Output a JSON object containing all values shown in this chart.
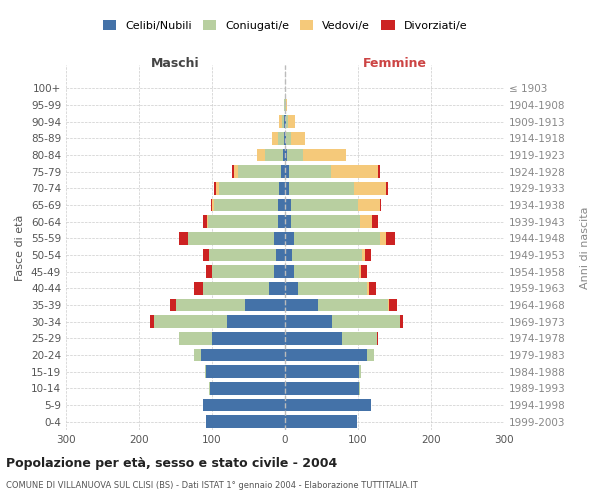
{
  "age_groups": [
    "0-4",
    "5-9",
    "10-14",
    "15-19",
    "20-24",
    "25-29",
    "30-34",
    "35-39",
    "40-44",
    "45-49",
    "50-54",
    "55-59",
    "60-64",
    "65-69",
    "70-74",
    "75-79",
    "80-84",
    "85-89",
    "90-94",
    "95-99",
    "100+"
  ],
  "birth_years": [
    "1999-2003",
    "1994-1998",
    "1989-1993",
    "1984-1988",
    "1979-1983",
    "1974-1978",
    "1969-1973",
    "1964-1968",
    "1959-1963",
    "1954-1958",
    "1949-1953",
    "1944-1948",
    "1939-1943",
    "1934-1938",
    "1929-1933",
    "1924-1928",
    "1919-1923",
    "1914-1918",
    "1909-1913",
    "1904-1908",
    "≤ 1903"
  ],
  "colors": {
    "celibi": "#4472a8",
    "coniugati": "#b8cfa0",
    "vedovi": "#f5c97a",
    "divorziati": "#cc2222"
  },
  "maschi": {
    "celibi": [
      108,
      112,
      103,
      108,
      115,
      100,
      80,
      55,
      22,
      15,
      12,
      15,
      10,
      9,
      8,
      5,
      3,
      2,
      1,
      0,
      0
    ],
    "coniugati": [
      0,
      0,
      1,
      2,
      10,
      45,
      100,
      95,
      90,
      85,
      92,
      118,
      95,
      88,
      82,
      60,
      25,
      8,
      3,
      1,
      0
    ],
    "vedovi": [
      0,
      0,
      0,
      0,
      0,
      0,
      0,
      0,
      0,
      0,
      0,
      0,
      2,
      3,
      5,
      5,
      10,
      8,
      4,
      1,
      0
    ],
    "divorziati": [
      0,
      0,
      0,
      0,
      0,
      0,
      5,
      8,
      12,
      8,
      8,
      12,
      6,
      2,
      2,
      2,
      0,
      0,
      0,
      0,
      0
    ]
  },
  "femmine": {
    "nubili": [
      98,
      118,
      102,
      102,
      112,
      78,
      65,
      45,
      18,
      12,
      10,
      12,
      8,
      8,
      6,
      5,
      3,
      2,
      1,
      0,
      0
    ],
    "coniugate": [
      0,
      0,
      1,
      2,
      10,
      48,
      92,
      96,
      95,
      90,
      95,
      118,
      95,
      92,
      88,
      58,
      22,
      6,
      3,
      1,
      0
    ],
    "vedove": [
      0,
      0,
      0,
      0,
      0,
      0,
      0,
      2,
      2,
      2,
      5,
      8,
      16,
      30,
      45,
      65,
      58,
      20,
      10,
      2,
      0
    ],
    "divorziate": [
      0,
      0,
      0,
      0,
      0,
      2,
      5,
      10,
      10,
      8,
      8,
      12,
      8,
      2,
      2,
      2,
      0,
      0,
      0,
      0,
      0
    ]
  },
  "title": "Popolazione per età, sesso e stato civile - 2004",
  "subtitle": "COMUNE DI VILLANUOVA SUL CLISI (BS) - Dati ISTAT 1° gennaio 2004 - Elaborazione TUTTITALIA.IT",
  "xlabel_left": "Maschi",
  "xlabel_right": "Femmine",
  "ylabel_left": "Fasce di età",
  "ylabel_right": "Anni di nascita",
  "xlim": 300,
  "background_color": "#ffffff",
  "grid_color": "#cccccc",
  "legend_labels": [
    "Celibi/Nubili",
    "Coniugati/e",
    "Vedovi/e",
    "Divorziati/e"
  ]
}
